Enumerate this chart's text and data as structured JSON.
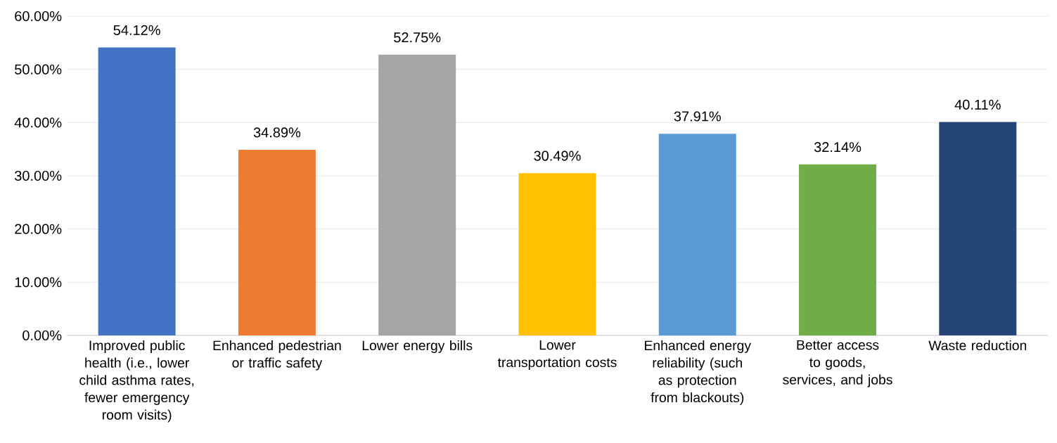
{
  "chart_data": {
    "type": "bar",
    "categories": [
      "Improved public health (i.e., lower child asthma rates, fewer emergency room visits)",
      "Enhanced pedestrian or traffic safety",
      "Lower energy bills",
      "Lower transportation costs",
      "Enhanced energy reliability (such as protection from blackouts)",
      "Better access to goods, services, and jobs",
      "Waste reduction"
    ],
    "values": [
      54.12,
      34.89,
      52.75,
      30.49,
      37.91,
      32.14,
      40.11
    ],
    "value_labels": [
      "54.12%",
      "34.89%",
      "52.75%",
      "30.49%",
      "37.91%",
      "32.14%",
      "40.11%"
    ],
    "colors": [
      "#4472c4",
      "#ed7d31",
      "#a5a5a5",
      "#ffc000",
      "#5b9bd5",
      "#70ad47",
      "#264478"
    ],
    "ylim": [
      0,
      60
    ],
    "yticks": [
      {
        "value": 0,
        "label": "0.00%"
      },
      {
        "value": 10,
        "label": "10.00%"
      },
      {
        "value": 20,
        "label": "20.00%"
      },
      {
        "value": 30,
        "label": "30.00%"
      },
      {
        "value": 40,
        "label": "40.00%"
      },
      {
        "value": 50,
        "label": "50.00%"
      },
      {
        "value": 60,
        "label": "60.00%"
      }
    ],
    "grid": "y"
  }
}
